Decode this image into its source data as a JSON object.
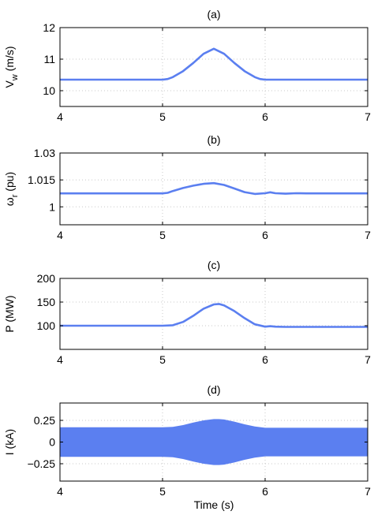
{
  "colors": {
    "series": "#5b7ff0"
  },
  "chart_data": [
    {
      "type": "line",
      "title": "(a)",
      "ylabel_main": "V",
      "ylabel_sub": "w",
      "ylabel_unit": " (m/s)",
      "xlabel": "",
      "xlim": [
        4,
        7
      ],
      "ylim": [
        9.5,
        12
      ],
      "xticks": [
        "4",
        "5",
        "6",
        "7"
      ],
      "yticks": [
        "10",
        "11",
        "12"
      ],
      "grid": true,
      "series": [
        {
          "x": [
            4.0,
            5.0,
            5.05,
            5.1,
            5.2,
            5.3,
            5.4,
            5.5,
            5.6,
            5.7,
            5.8,
            5.9,
            5.95,
            6.0,
            7.0
          ],
          "y": [
            10.35,
            10.35,
            10.37,
            10.43,
            10.62,
            10.88,
            11.17,
            11.33,
            11.17,
            10.88,
            10.62,
            10.43,
            10.37,
            10.35,
            10.35
          ]
        }
      ]
    },
    {
      "type": "line",
      "title": "(b)",
      "ylabel_main": "ω",
      "ylabel_sub": "r",
      "ylabel_unit": " (pu)",
      "xlabel": "",
      "xlim": [
        4,
        7
      ],
      "ylim": [
        0.99,
        1.03
      ],
      "xticks": [
        "4",
        "5",
        "6",
        "7"
      ],
      "yticks": [
        "1",
        "1.015",
        "1.03"
      ],
      "grid": true,
      "series": [
        {
          "x": [
            4.0,
            5.0,
            5.05,
            5.1,
            5.2,
            5.3,
            5.4,
            5.5,
            5.6,
            5.7,
            5.8,
            5.9,
            6.0,
            6.05,
            6.1,
            6.2,
            6.3,
            6.4,
            7.0
          ],
          "y": [
            1.0075,
            1.0075,
            1.0078,
            1.0088,
            1.0105,
            1.0118,
            1.0128,
            1.0132,
            1.0122,
            1.0102,
            1.0082,
            1.0072,
            1.0076,
            1.0081,
            1.0076,
            1.0073,
            1.0076,
            1.0075,
            1.0075
          ]
        }
      ]
    },
    {
      "type": "line",
      "title": "(c)",
      "ylabel_main": "P (MW)",
      "ylabel_sub": "",
      "ylabel_unit": "",
      "xlabel": "",
      "xlim": [
        4,
        7
      ],
      "ylim": [
        50,
        200
      ],
      "xticks": [
        "4",
        "5",
        "6",
        "7"
      ],
      "yticks": [
        "100",
        "150",
        "200"
      ],
      "grid": true,
      "series": [
        {
          "x": [
            4.0,
            5.0,
            5.1,
            5.2,
            5.3,
            5.4,
            5.5,
            5.55,
            5.6,
            5.7,
            5.8,
            5.9,
            6.0,
            6.05,
            6.1,
            6.2,
            6.4,
            7.0
          ],
          "y": [
            100,
            100,
            101,
            108,
            121,
            136,
            145,
            146,
            143,
            131,
            116,
            103,
            98,
            99,
            98,
            97.5,
            97.5,
            97.5
          ]
        }
      ]
    },
    {
      "type": "area",
      "title": "(d)",
      "ylabel_main": "I (kA)",
      "ylabel_sub": "",
      "ylabel_unit": "",
      "xlabel": "Time (s)",
      "xlim": [
        4,
        7
      ],
      "ylim": [
        -0.45,
        0.45
      ],
      "xticks": [
        "4",
        "5",
        "6",
        "7"
      ],
      "yticks": [
        "-0.25",
        "0",
        "0.25"
      ],
      "grid": true,
      "series": [
        {
          "x": [
            4.0,
            5.0,
            5.1,
            5.2,
            5.3,
            5.4,
            5.5,
            5.55,
            5.6,
            5.7,
            5.8,
            5.9,
            6.0,
            7.0
          ],
          "upper": [
            0.17,
            0.17,
            0.175,
            0.195,
            0.225,
            0.25,
            0.265,
            0.265,
            0.26,
            0.235,
            0.205,
            0.18,
            0.165,
            0.165
          ],
          "lower": [
            -0.17,
            -0.17,
            -0.175,
            -0.195,
            -0.225,
            -0.25,
            -0.265,
            -0.265,
            -0.26,
            -0.235,
            -0.205,
            -0.18,
            -0.165,
            -0.165
          ]
        }
      ]
    }
  ]
}
